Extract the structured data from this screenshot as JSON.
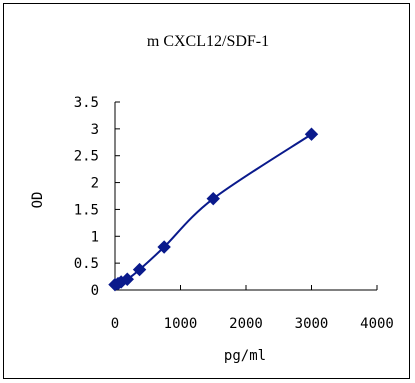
{
  "chart_data": {
    "type": "line",
    "title": "m CXCL12/SDF-1",
    "xlabel": "pg/ml",
    "ylabel": "OD",
    "xlim": [
      0,
      4000
    ],
    "ylim": [
      0,
      3.5
    ],
    "x_ticks": [
      0,
      1000,
      2000,
      3000,
      4000
    ],
    "y_ticks": [
      0,
      0.5,
      1,
      1.5,
      2,
      2.5,
      3,
      3.5
    ],
    "x_tick_labels": [
      "0",
      "1000",
      "2000",
      "3000",
      "4000"
    ],
    "y_tick_labels": [
      "0",
      "0.5",
      "1",
      "1.5",
      "2",
      "2.5",
      "3",
      "3.5"
    ],
    "grid": false,
    "legend": "none",
    "series": [
      {
        "color": "#0a1a8c",
        "marker": "diamond",
        "line": "smooth",
        "x": [
          0,
          46.9,
          93.8,
          187.5,
          375,
          750,
          1500,
          3000
        ],
        "y": [
          0.1,
          0.12,
          0.15,
          0.2,
          0.38,
          0.8,
          1.7,
          2.9
        ]
      }
    ]
  }
}
